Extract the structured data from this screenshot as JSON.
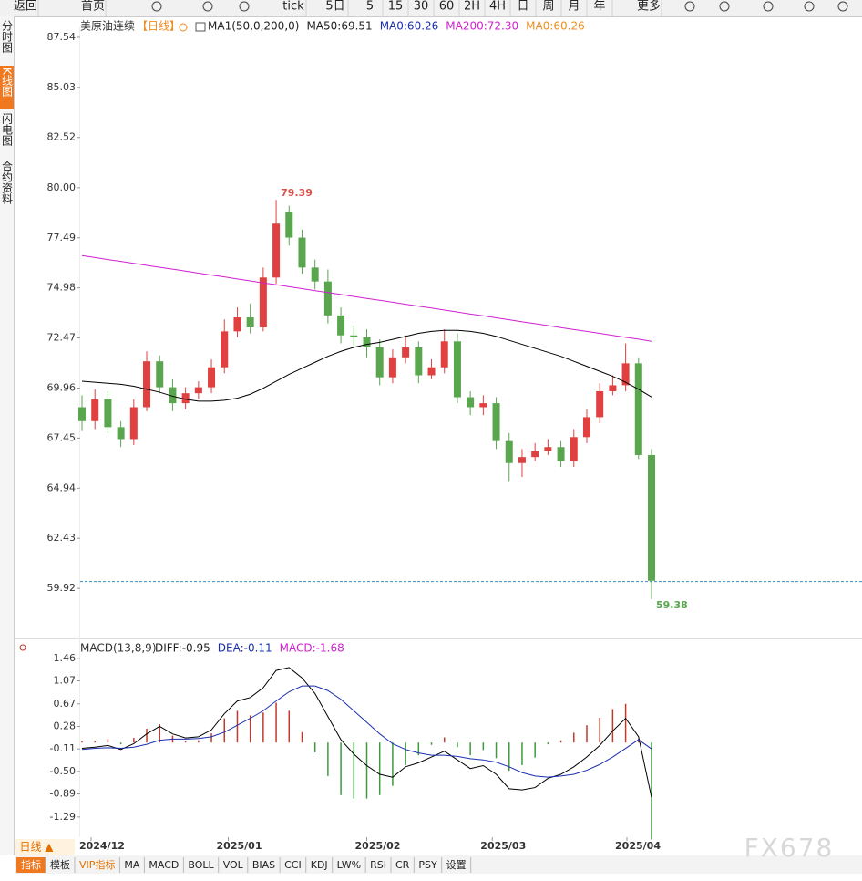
{
  "toolbar": [
    "返回",
    "首页",
    "tick",
    "5日",
    "5",
    "15",
    "30",
    "60",
    "2H",
    "4H",
    "日",
    "周",
    "月",
    "年",
    "更多"
  ],
  "sidebar": [
    "分时图",
    "K线图",
    "闪电图",
    "合约资料"
  ],
  "bottom": {
    "period": "日线 ▲",
    "tabs": [
      "指标",
      "模板",
      "VIP指标",
      "MA",
      "MACD",
      "BOLL",
      "VOL",
      "BIAS",
      "CCI",
      "KDJ",
      "LW%",
      "RSI",
      "CR",
      "PSY",
      "设置"
    ]
  },
  "watermark": "FX678",
  "chart_data": [
    {
      "type": "candlestick",
      "title": "美原油连续",
      "period": "【日线】",
      "legend": [
        {
          "text": "MA1(50,0,200,0)",
          "color": "#222"
        },
        {
          "text": "MA0:60.26",
          "color": "#1a2fb0"
        }
      ],
      "up_color": "#e0403f",
      "down_color": "#5aa64f",
      "open": [
        69.0,
        68.3,
        69.4,
        68.0,
        67.4,
        69.0,
        71.3,
        70.0,
        69.2,
        69.7,
        70.0,
        71.0,
        72.8,
        73.5,
        73.0,
        75.5,
        78.8,
        77.5,
        76.0,
        75.3,
        73.6,
        72.6,
        72.5,
        72.0,
        70.5,
        71.5,
        72.0,
        70.6,
        71.0,
        72.3,
        69.5,
        69.0,
        69.2,
        67.3,
        66.2,
        66.5,
        66.8,
        67.0,
        66.3,
        67.5,
        68.5,
        69.8,
        70.1,
        71.2,
        66.6
      ],
      "high": [
        69.6,
        69.9,
        69.8,
        68.3,
        69.4,
        71.8,
        71.6,
        70.4,
        70.0,
        70.3,
        71.4,
        73.4,
        74.0,
        74.2,
        76.0,
        79.39,
        79.1,
        77.9,
        76.4,
        75.9,
        74.0,
        73.1,
        72.9,
        72.4,
        71.9,
        72.6,
        72.3,
        71.4,
        72.9,
        72.7,
        69.8,
        69.6,
        69.5,
        67.7,
        66.9,
        67.2,
        67.4,
        67.3,
        67.9,
        68.9,
        70.2,
        70.6,
        72.2,
        71.5,
        66.9
      ],
      "low": [
        67.8,
        67.9,
        67.7,
        67.0,
        67.1,
        68.8,
        69.7,
        68.8,
        68.9,
        69.4,
        69.7,
        70.7,
        72.5,
        72.7,
        72.8,
        75.2,
        77.1,
        75.7,
        74.9,
        73.2,
        72.2,
        72.1,
        71.5,
        70.1,
        70.2,
        71.2,
        70.2,
        70.4,
        70.7,
        69.2,
        68.6,
        68.6,
        66.9,
        65.3,
        65.5,
        66.3,
        66.6,
        66.0,
        66.0,
        67.2,
        68.2,
        69.6,
        69.8,
        66.4,
        59.38
      ],
      "close": [
        68.3,
        69.4,
        68.0,
        67.4,
        69.0,
        71.3,
        70.0,
        69.2,
        69.7,
        70.0,
        71.0,
        72.8,
        73.5,
        73.0,
        75.5,
        78.2,
        77.5,
        76.0,
        75.3,
        73.6,
        72.6,
        72.5,
        72.0,
        70.5,
        71.5,
        72.0,
        70.6,
        71.0,
        72.3,
        69.5,
        69.0,
        69.2,
        67.3,
        66.2,
        66.5,
        66.8,
        67.0,
        66.3,
        67.5,
        68.5,
        69.8,
        70.1,
        71.2,
        66.6,
        60.3
      ],
      "series": [
        {
          "label": "MA50:69.51",
          "color": "#000000",
          "values": [
            70.3,
            70.25,
            70.2,
            70.15,
            70.05,
            69.9,
            69.75,
            69.55,
            69.4,
            69.3,
            69.3,
            69.35,
            69.45,
            69.65,
            69.95,
            70.3,
            70.65,
            70.95,
            71.25,
            71.55,
            71.8,
            72.0,
            72.15,
            72.25,
            72.4,
            72.55,
            72.7,
            72.8,
            72.85,
            72.85,
            72.8,
            72.7,
            72.55,
            72.35,
            72.15,
            71.95,
            71.75,
            71.55,
            71.3,
            71.05,
            70.8,
            70.55,
            70.25,
            69.9,
            69.51
          ]
        },
        {
          "label": "MA200:72.30",
          "color": "#d020d0",
          "values": [
            76.6,
            76.5,
            76.4,
            76.31,
            76.21,
            76.11,
            76.01,
            75.92,
            75.82,
            75.72,
            75.62,
            75.53,
            75.43,
            75.33,
            75.23,
            75.14,
            75.04,
            74.94,
            74.84,
            74.75,
            74.65,
            74.55,
            74.45,
            74.36,
            74.26,
            74.16,
            74.06,
            73.97,
            73.87,
            73.77,
            73.67,
            73.58,
            73.48,
            73.38,
            73.28,
            73.19,
            73.09,
            72.99,
            72.89,
            72.8,
            72.7,
            72.6,
            72.5,
            72.41,
            72.3
          ]
        }
      ],
      "legend_after": {
        "text": "MA0:60.26",
        "color": "#f08c1c"
      },
      "current_price": 60.26,
      "ylim": [
        57.41,
        88.04
      ],
      "yticks": [
        87.54,
        85.03,
        82.52,
        {
          "value": 80,
          "label": "80.00"
        },
        77.49,
        74.98,
        72.47,
        69.96,
        67.45,
        64.94,
        62.43,
        59.92
      ],
      "xticks": [
        {
          "value": 0.7,
          "label": "2024/12"
        },
        {
          "value": 11.3,
          "label": "2025/01"
        },
        {
          "value": 22,
          "label": "2025/02"
        },
        {
          "value": 31.7,
          "label": "2025/03"
        },
        {
          "value": 42.1,
          "label": "2025/04"
        }
      ]
    },
    {
      "type": "macd",
      "title": "MACD(13,8,9)",
      "legend": [
        {
          "text": "DIFF:-0.95",
          "color": "#222"
        },
        {
          "text": "DEA:-0.11",
          "color": "#1a2fb0"
        },
        {
          "text": "MACD:-1.68",
          "color": "#d020d0"
        }
      ],
      "series": [
        {
          "color": "#000000",
          "values": [
            -0.1,
            -0.08,
            -0.05,
            -0.12,
            -0.02,
            0.15,
            0.28,
            0.15,
            0.08,
            0.1,
            0.22,
            0.5,
            0.72,
            0.78,
            0.95,
            1.25,
            1.3,
            1.12,
            0.85,
            0.45,
            0.05,
            -0.2,
            -0.4,
            -0.55,
            -0.6,
            -0.42,
            -0.35,
            -0.25,
            -0.15,
            -0.3,
            -0.45,
            -0.4,
            -0.55,
            -0.8,
            -0.82,
            -0.78,
            -0.62,
            -0.55,
            -0.42,
            -0.25,
            -0.05,
            0.2,
            0.42,
            0.1,
            -0.95
          ]
        },
        {
          "color": "#1a2fb0",
          "values": [
            -0.12,
            -0.1,
            -0.09,
            -0.1,
            -0.08,
            -0.03,
            0.04,
            0.06,
            0.06,
            0.07,
            0.1,
            0.18,
            0.3,
            0.42,
            0.55,
            0.72,
            0.88,
            0.98,
            0.98,
            0.9,
            0.75,
            0.55,
            0.35,
            0.15,
            -0.02,
            -0.12,
            -0.18,
            -0.22,
            -0.22,
            -0.24,
            -0.28,
            -0.3,
            -0.34,
            -0.42,
            -0.52,
            -0.58,
            -0.6,
            -0.58,
            -0.55,
            -0.48,
            -0.38,
            -0.25,
            -0.1,
            0.05,
            -0.11
          ]
        }
      ],
      "histogram": [
        0.03,
        0.03,
        0.06,
        -0.03,
        0.08,
        0.24,
        0.32,
        0.12,
        0.03,
        0.04,
        0.16,
        0.42,
        0.55,
        0.47,
        0.52,
        0.69,
        0.55,
        0.18,
        -0.17,
        -0.58,
        -0.91,
        -0.97,
        -0.97,
        -0.91,
        -0.75,
        -0.39,
        -0.22,
        -0.04,
        0.09,
        -0.08,
        -0.22,
        -0.13,
        -0.27,
        -0.49,
        -0.39,
        -0.26,
        -0.03,
        0.04,
        0.17,
        0.3,
        0.43,
        0.58,
        0.67,
        0.07,
        -1.68
      ],
      "up_color": "#c0392b",
      "down_color": "#3d9a3d",
      "ylim": [
        -1.64,
        1.52
      ],
      "yticks": [
        1.46,
        1.07,
        0.67,
        0.28,
        -0.11,
        {
          "value": -0.5,
          "label": "-0.50"
        },
        -0.89,
        -1.29
      ]
    }
  ]
}
